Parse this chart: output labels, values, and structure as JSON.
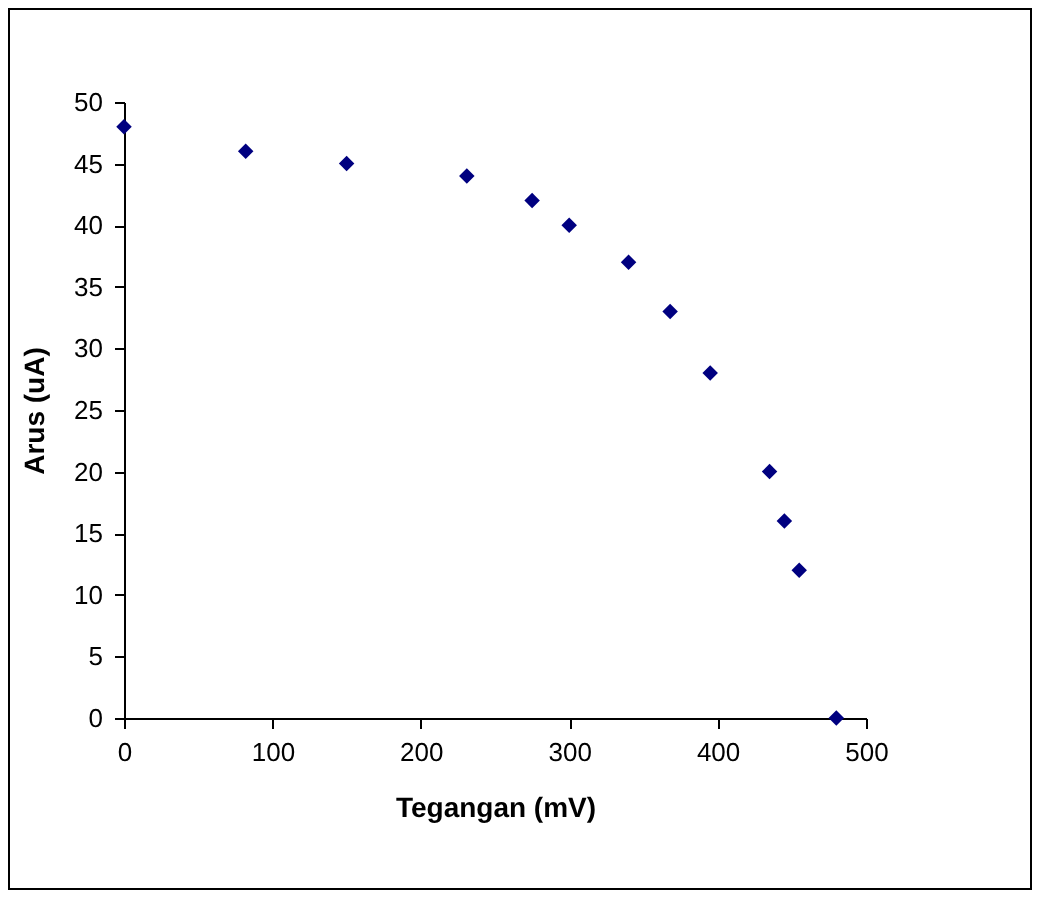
{
  "chart_data": {
    "type": "scatter",
    "xlabel": "Tegangan (mV)",
    "ylabel": "Arus (uA)",
    "x": [
      0,
      82,
      150,
      231,
      275,
      300,
      340,
      368,
      395,
      435,
      445,
      455,
      480
    ],
    "series": [
      {
        "color": "#000080",
        "values": [
          48,
          46,
          45,
          44,
          42,
          40,
          37,
          33,
          28,
          20,
          16,
          12,
          0
        ]
      }
    ],
    "xlim": [
      0,
      500
    ],
    "xticks": [
      0,
      100,
      200,
      300,
      400,
      500
    ],
    "ylim": [
      0,
      50
    ],
    "yticks": [
      0,
      5,
      10,
      15,
      20,
      25,
      30,
      35,
      40,
      45,
      50
    ],
    "grid": false,
    "marker": "diamond"
  }
}
